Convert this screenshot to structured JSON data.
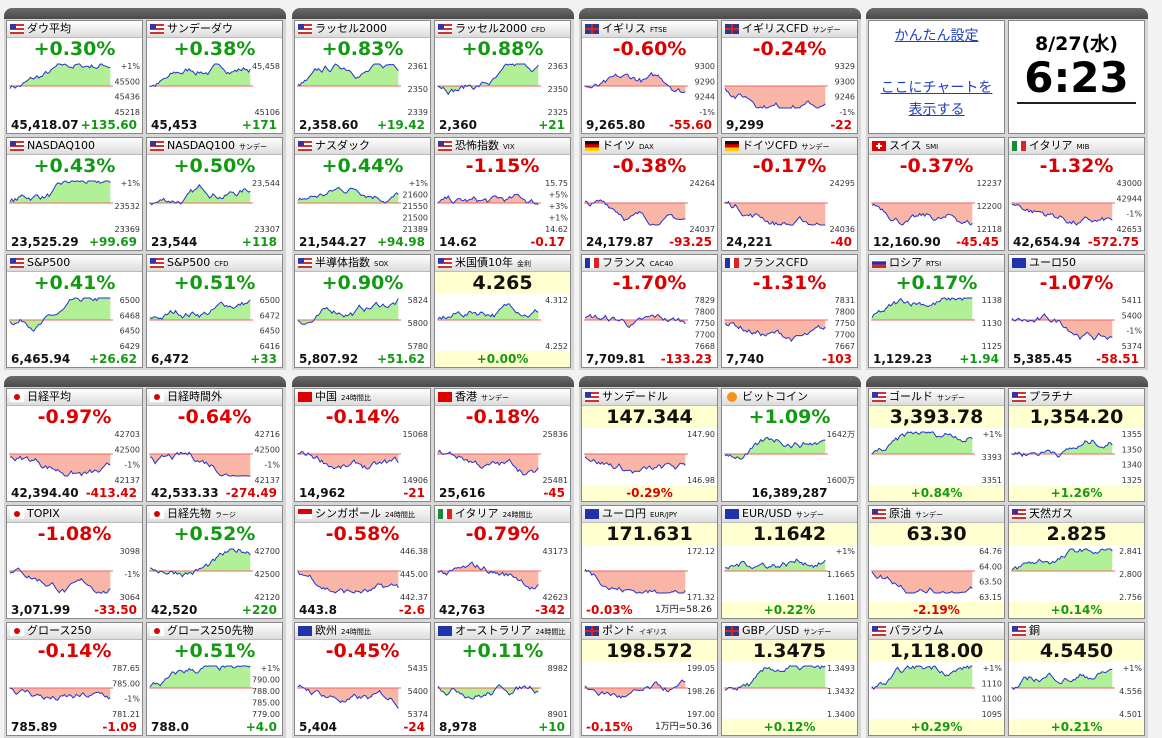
{
  "panel": {
    "link_settings": "かんたん設定",
    "link_chart": "ここにチャートを表示する",
    "date": "8/27(水)",
    "time": "6:23"
  },
  "sections": [
    {
      "groups": [
        {
          "tiles": [
            {
              "name": "ダウ平均",
              "headline": "+0.30%",
              "footer": [
                "45,418.07",
                "+135.60"
              ],
              "labels": [
                "+1%",
                "45500",
                "45436",
                "45218"
              ]
            },
            {
              "name": "サンデーダウ",
              "headline": "+0.38%",
              "footer": [
                "45,453",
                "+171"
              ],
              "labels": [
                "45,458",
                "45106"
              ]
            },
            {
              "name": "NASDAQ100",
              "headline": "+0.43%",
              "footer": [
                "23,525.29",
                "+99.69"
              ],
              "labels": [
                "+1%",
                "23532",
                "23369"
              ]
            },
            {
              "name": "NASDAQ100",
              "tag": "サンデー",
              "headline": "+0.50%",
              "footer": [
                "23,544",
                "+118"
              ],
              "labels": [
                "23,544",
                "23307"
              ]
            },
            {
              "name": "S&P500",
              "headline": "+0.41%",
              "footer": [
                "6,465.94",
                "+26.62"
              ],
              "labels": [
                "6500",
                "6468",
                "6450",
                "6429"
              ]
            },
            {
              "name": "S&P500",
              "tag": "CFD",
              "headline": "+0.51%",
              "footer": [
                "6,472",
                "+33"
              ],
              "labels": [
                "6500",
                "6472",
                "6450",
                "6416"
              ]
            }
          ]
        },
        {
          "tiles": [
            {
              "name": "ラッセル2000",
              "headline": "+0.83%",
              "footer": [
                "2,358.60",
                "+19.42"
              ],
              "labels": [
                "2361",
                "2350",
                "2339"
              ]
            },
            {
              "name": "ラッセル2000",
              "tag": "CFD",
              "headline": "+0.88%",
              "footer": [
                "2,360",
                "+21"
              ],
              "labels": [
                "2363",
                "2350",
                "2325"
              ]
            },
            {
              "name": "ナスダック",
              "headline": "+0.44%",
              "footer": [
                "21,544.27",
                "+94.98"
              ],
              "labels": [
                "+1%",
                "21600",
                "21550",
                "21500",
                "21389"
              ]
            },
            {
              "name": "恐怖指数",
              "tag": "VIX",
              "headline": "-1.15%",
              "footer": [
                "14.62",
                "-0.17"
              ],
              "labels": [
                "15.75",
                "+5%",
                "+3%",
                "+1%",
                "14.62"
              ]
            },
            {
              "name": "半導体指数",
              "tag": "SOX",
              "headline": "+0.90%",
              "footer": [
                "5,807.92",
                "+51.62"
              ],
              "labels": [
                "5824",
                "5800",
                "5780"
              ]
            },
            {
              "name": "米国債10年",
              "tag": "金利",
              "headline": "4.265",
              "footer": [
                "+0.00%"
              ],
              "labels": [
                "4.312",
                "4.252"
              ]
            }
          ]
        },
        {
          "tiles": [
            {
              "name": "イギリス",
              "tag": "FTSE",
              "headline": "-0.60%",
              "footer": [
                "9,265.80",
                "-55.60"
              ],
              "labels": [
                "9300",
                "9290",
                "9244",
                "-1%"
              ]
            },
            {
              "name": "イギリスCFD",
              "tag": "サンデー",
              "headline": "-0.24%",
              "footer": [
                "9,299",
                "-22"
              ],
              "labels": [
                "9329",
                "9300",
                "9246",
                "-1%"
              ]
            },
            {
              "name": "ドイツ",
              "tag": "DAX",
              "headline": "-0.38%",
              "footer": [
                "24,179.87",
                "-93.25"
              ],
              "labels": [
                "24264",
                "24037"
              ]
            },
            {
              "name": "ドイツCFD",
              "tag": "サンデー",
              "headline": "-0.17%",
              "footer": [
                "24,221",
                "-40"
              ],
              "labels": [
                "24295",
                "24036"
              ]
            },
            {
              "name": "フランス",
              "tag": "CAC40",
              "headline": "-1.70%",
              "footer": [
                "7,709.81",
                "-133.23"
              ],
              "labels": [
                "7829",
                "7800",
                "7750",
                "7700",
                "7668"
              ]
            },
            {
              "name": "フランスCFD",
              "headline": "-1.31%",
              "footer": [
                "7,740",
                "-103"
              ],
              "labels": [
                "7831",
                "7800",
                "7750",
                "7700",
                "7667"
              ]
            }
          ]
        },
        {
          "panel": true,
          "tiles": [
            {
              "name": "スイス",
              "tag": "SMI",
              "headline": "-0.37%",
              "footer": [
                "12,160.90",
                "-45.45"
              ],
              "labels": [
                "12237",
                "12200",
                "12118"
              ]
            },
            {
              "name": "イタリア",
              "tag": "MIB",
              "headline": "-1.32%",
              "footer": [
                "42,654.94",
                "-572.75"
              ],
              "labels": [
                "43000",
                "42944",
                "-1%",
                "42653"
              ]
            },
            {
              "name": "ロシア",
              "tag": "RTSI",
              "headline": "+0.17%",
              "footer": [
                "1,129.23",
                "+1.94"
              ],
              "labels": [
                "1138",
                "1130",
                "1125"
              ]
            },
            {
              "name": "ユーロ50",
              "headline": "-1.07%",
              "footer": [
                "5,385.45",
                "-58.51"
              ],
              "labels": [
                "5411",
                "5400",
                "-1%",
                "5374"
              ]
            }
          ]
        }
      ]
    },
    {
      "groups": [
        {
          "tiles": [
            {
              "name": "日経平均",
              "headline": "-0.97%",
              "footer": [
                "42,394.40",
                "-413.42"
              ],
              "labels": [
                "42703",
                "42500",
                "-1%",
                "42137"
              ]
            },
            {
              "name": "日経時間外",
              "headline": "-0.64%",
              "footer": [
                "42,533.33",
                "-274.49"
              ],
              "labels": [
                "42716",
                "42500",
                "-1%",
                "42137"
              ]
            },
            {
              "name": "TOPIX",
              "headline": "-1.08%",
              "footer": [
                "3,071.99",
                "-33.50"
              ],
              "labels": [
                "3098",
                "-1%",
                "3064"
              ]
            },
            {
              "name": "日経先物",
              "tag": "ラージ",
              "headline": "+0.52%",
              "footer": [
                "42,520",
                "+220"
              ],
              "labels": [
                "42700",
                "42500",
                "42120"
              ]
            },
            {
              "name": "グロース250",
              "headline": "-0.14%",
              "footer": [
                "785.89",
                "-1.09"
              ],
              "labels": [
                "787.65",
                "785.00",
                "-1%",
                "781.21"
              ]
            },
            {
              "name": "グロース250先物",
              "headline": "+0.51%",
              "footer": [
                "788.0",
                "+4.0"
              ],
              "labels": [
                "+1%",
                "790.00",
                "788.00",
                "785.00",
                "779.00"
              ]
            }
          ]
        },
        {
          "tiles": [
            {
              "name": "中国",
              "tag": "24時間比",
              "headline": "-0.14%",
              "footer": [
                "14,962",
                "-21"
              ],
              "labels": [
                "15068",
                "14906"
              ]
            },
            {
              "name": "香港",
              "tag": "サンデー",
              "headline": "-0.18%",
              "footer": [
                "25,616",
                "-45"
              ],
              "labels": [
                "25836",
                "25481"
              ]
            },
            {
              "name": "シンガポール",
              "tag": "24時間比",
              "headline": "-0.58%",
              "footer": [
                "443.8",
                "-2.6"
              ],
              "labels": [
                "446.38",
                "445.00",
                "442.37"
              ]
            },
            {
              "name": "イタリア",
              "tag": "24時間比",
              "headline": "-0.79%",
              "footer": [
                "42,763",
                "-342"
              ],
              "labels": [
                "43173",
                "42623"
              ]
            },
            {
              "name": "欧州",
              "tag": "24時間比",
              "headline": "-0.45%",
              "footer": [
                "5,404",
                "-24"
              ],
              "labels": [
                "5435",
                "5400",
                "5374"
              ]
            },
            {
              "name": "オーストラリア",
              "tag": "24時間比",
              "headline": "+0.11%",
              "footer": [
                "8,978",
                "+10"
              ],
              "labels": [
                "8982",
                "8901"
              ]
            }
          ]
        },
        {
          "tiles": [
            {
              "name": "サンデードル",
              "headline": "147.344",
              "footer": [
                "-0.29%"
              ],
              "labels": [
                "147.90",
                "146.98"
              ]
            },
            {
              "name": "ビットコイン",
              "headline": "+1.09%",
              "footer": [
                "16,389,287"
              ],
              "labels": [
                "1642万",
                "1600万"
              ]
            },
            {
              "name": "ユーロ円",
              "tag": "EUR/JPY",
              "headline": "171.631",
              "footer": [
                "-0.03%",
                "1万円=58.26"
              ],
              "labels": [
                "172.12",
                "171.32"
              ]
            },
            {
              "name": "EUR/USD",
              "tag": "サンデー",
              "headline": "1.1642",
              "footer": [
                "+0.22%"
              ],
              "labels": [
                "+1%",
                "1.1665",
                "1.1601"
              ]
            },
            {
              "name": "ポンド",
              "tag": "イギリス",
              "headline": "198.572",
              "footer": [
                "-0.15%",
                "1万円=50.36"
              ],
              "labels": [
                "199.05",
                "198.26",
                "197.00"
              ]
            },
            {
              "name": "GBP／USD",
              "tag": "サンデー",
              "headline": "1.3475",
              "footer": [
                "+0.12%"
              ],
              "labels": [
                "1.3493",
                "1.3432",
                "1.3400"
              ]
            }
          ]
        },
        {
          "tiles": [
            {
              "name": "ゴールド",
              "tag": "サンデー",
              "headline": "3,393.78",
              "footer": [
                "+0.84%"
              ],
              "labels": [
                "+1%",
                "3393",
                "3351"
              ]
            },
            {
              "name": "プラチナ",
              "headline": "1,354.20",
              "footer": [
                "+1.26%"
              ],
              "labels": [
                "1355",
                "1350",
                "1340",
                "1325"
              ]
            },
            {
              "name": "原油",
              "tag": "サンデー",
              "headline": "63.30",
              "footer": [
                "-2.19%"
              ],
              "labels": [
                "64.76",
                "64.00",
                "63.50",
                "63.15"
              ]
            },
            {
              "name": "天然ガス",
              "headline": "2.825",
              "footer": [
                "+0.14%"
              ],
              "labels": [
                "2.841",
                "2.800",
                "2.756"
              ]
            },
            {
              "name": "パラジウム",
              "headline": "1,118.00",
              "footer": [
                "+0.29%"
              ],
              "labels": [
                "+1%",
                "1110",
                "1100",
                "1095"
              ]
            },
            {
              "name": "銅",
              "headline": "4.5450",
              "footer": [
                "+0.21%"
              ],
              "labels": [
                "+1%",
                "4.556",
                "4.501"
              ]
            }
          ]
        }
      ]
    }
  ]
}
